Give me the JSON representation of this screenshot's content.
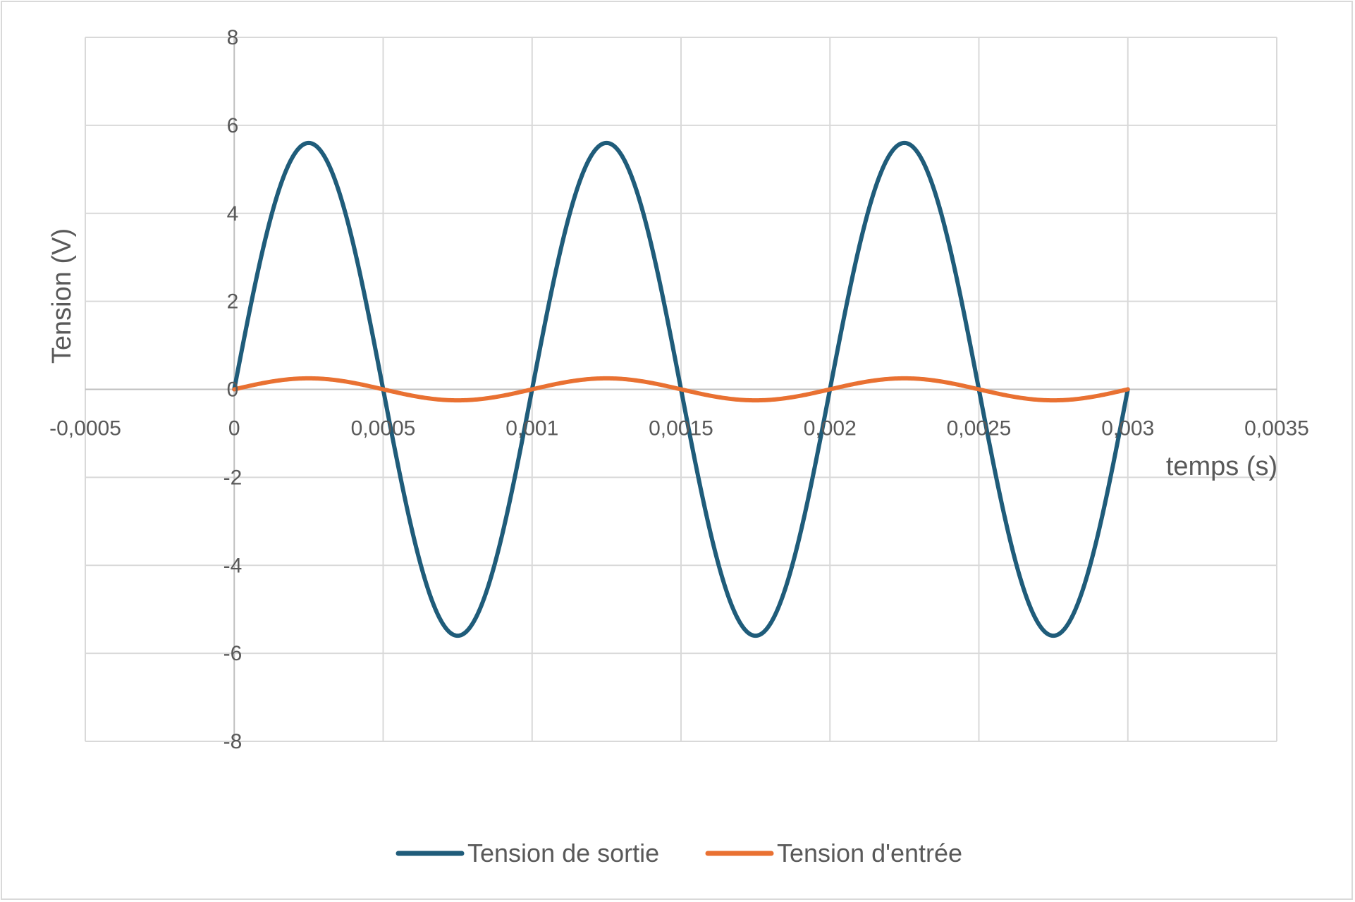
{
  "chart_data": {
    "type": "line",
    "xlabel": "temps (s)",
    "ylabel": "Tension (V)",
    "xlim": [
      -0.0005,
      0.0035
    ],
    "ylim": [
      -8,
      8
    ],
    "x_ticks": [
      "-0,0005",
      "0",
      "0,0005",
      "0,001",
      "0,0015",
      "0,002",
      "0,0025",
      "0,003",
      "0,0035"
    ],
    "y_ticks": [
      "8",
      "6",
      "4",
      "2",
      "0",
      "-2",
      "-4",
      "-6",
      "-8"
    ],
    "grid": true,
    "legend_position": "bottom",
    "series": [
      {
        "name": "Tension de sortie",
        "color": "#1f5c7a",
        "x": [
          0,
          0.000125,
          0.00025,
          0.000375,
          0.0005,
          0.000625,
          0.00075,
          0.000875,
          0.001,
          0.001125,
          0.00125,
          0.001375,
          0.0015,
          0.001625,
          0.00175,
          0.001875,
          0.002,
          0.002125,
          0.00225,
          0.002375,
          0.0025,
          0.002625,
          0.00275,
          0.002875,
          0.003
        ],
        "y": [
          0,
          3.96,
          5.6,
          3.96,
          0,
          -3.96,
          -5.6,
          -3.96,
          0,
          3.96,
          5.6,
          3.96,
          0,
          -3.96,
          -5.6,
          -3.96,
          0,
          3.96,
          5.6,
          3.96,
          0,
          -3.96,
          -5.6,
          -3.96,
          0
        ]
      },
      {
        "name": "Tension d'entrée",
        "color": "#e97132",
        "x": [
          0,
          0.000125,
          0.00025,
          0.000375,
          0.0005,
          0.000625,
          0.00075,
          0.000875,
          0.001,
          0.001125,
          0.00125,
          0.001375,
          0.0015,
          0.001625,
          0.00175,
          0.001875,
          0.002,
          0.002125,
          0.00225,
          0.002375,
          0.0025,
          0.002625,
          0.00275,
          0.002875,
          0.003
        ],
        "y": [
          0,
          0.177,
          0.25,
          0.177,
          0,
          -0.177,
          -0.25,
          -0.177,
          0,
          0.177,
          0.25,
          0.177,
          0,
          -0.177,
          -0.25,
          -0.177,
          0,
          0.177,
          0.25,
          0.177,
          0,
          -0.177,
          -0.25,
          -0.177,
          0
        ]
      }
    ]
  }
}
